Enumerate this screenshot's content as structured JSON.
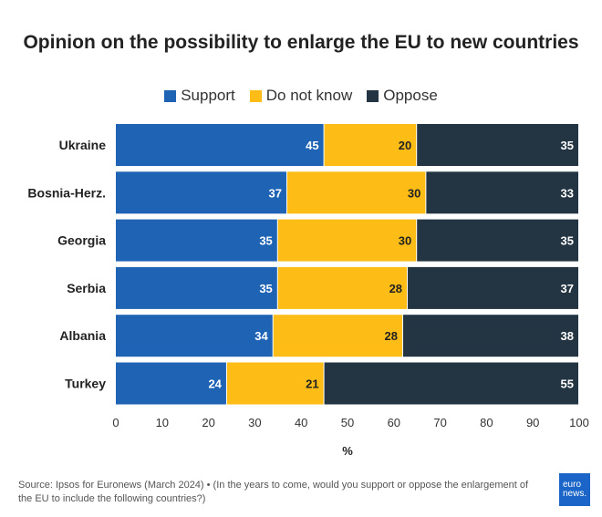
{
  "chart_data": {
    "type": "bar",
    "orientation": "horizontal",
    "stacked": true,
    "title": "Opinion on the possibility to enlarge the EU to new countries",
    "categories": [
      "Ukraine",
      "Bosnia-Herz.",
      "Georgia",
      "Serbia",
      "Albania",
      "Turkey"
    ],
    "series": [
      {
        "name": "Support",
        "color": "#1f63b5",
        "values": [
          45,
          37,
          35,
          35,
          34,
          24
        ]
      },
      {
        "name": "Do not know",
        "color": "#fdbd16",
        "values": [
          20,
          30,
          30,
          28,
          28,
          21
        ]
      },
      {
        "name": "Oppose",
        "color": "#233542",
        "values": [
          35,
          33,
          35,
          37,
          38,
          55
        ]
      }
    ],
    "xlabel": "%",
    "xlim": [
      0,
      100
    ],
    "xticks": [
      0,
      10,
      20,
      30,
      40,
      50,
      60,
      70,
      80,
      90,
      100
    ],
    "legend_position": "top-center",
    "grid": false
  },
  "source": "Source: Ipsos for Euronews (March 2024) • (In the years to come, would you support or oppose the enlargement of the EU to include the following countries?)",
  "logo": {
    "line1": "euro",
    "line2": "news."
  }
}
